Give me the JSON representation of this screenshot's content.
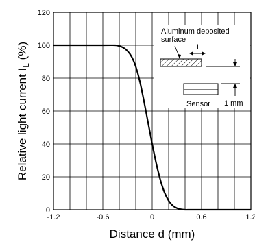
{
  "chart_data": {
    "type": "line",
    "xlabel": "Distance d (mm)",
    "ylabel": "Relative light current  I",
    "ylabel_sub": "L",
    "ylabel_unit": " (%)",
    "xlim": [
      -1.2,
      1.2
    ],
    "ylim": [
      0,
      120
    ],
    "x_ticks": [
      -1.2,
      -0.6,
      0,
      0.6,
      1.2
    ],
    "x_tick_labels": [
      "-1.2",
      "-0.6",
      "0",
      "0.6",
      "1.2"
    ],
    "y_ticks": [
      0,
      20,
      40,
      60,
      80,
      100,
      120
    ],
    "y_tick_labels": [
      "0",
      "20",
      "40",
      "60",
      "80",
      "100",
      "120"
    ],
    "grid": true,
    "series": [
      {
        "x": [
          -1.2,
          -0.6,
          -0.45,
          -0.4,
          -0.35,
          -0.3,
          -0.25,
          -0.2,
          -0.15,
          -0.1,
          -0.05,
          0,
          0.05,
          0.1,
          0.15,
          0.2,
          0.25,
          0.3,
          0.35,
          0.4,
          0.45,
          0.5,
          0.6,
          1.2
        ],
        "y": [
          100,
          100,
          100,
          99.5,
          98.5,
          96.5,
          93,
          87,
          78,
          66,
          53,
          40,
          28,
          18,
          10.5,
          5.5,
          2.5,
          1,
          0.3,
          0,
          0,
          0,
          0,
          0
        ]
      }
    ],
    "annotations": {
      "surface_label_line1": "Aluminum deposited",
      "surface_label_line2": "surface",
      "l_label": "L",
      "sensor_label": "Sensor",
      "gap_label": "1 mm"
    }
  }
}
